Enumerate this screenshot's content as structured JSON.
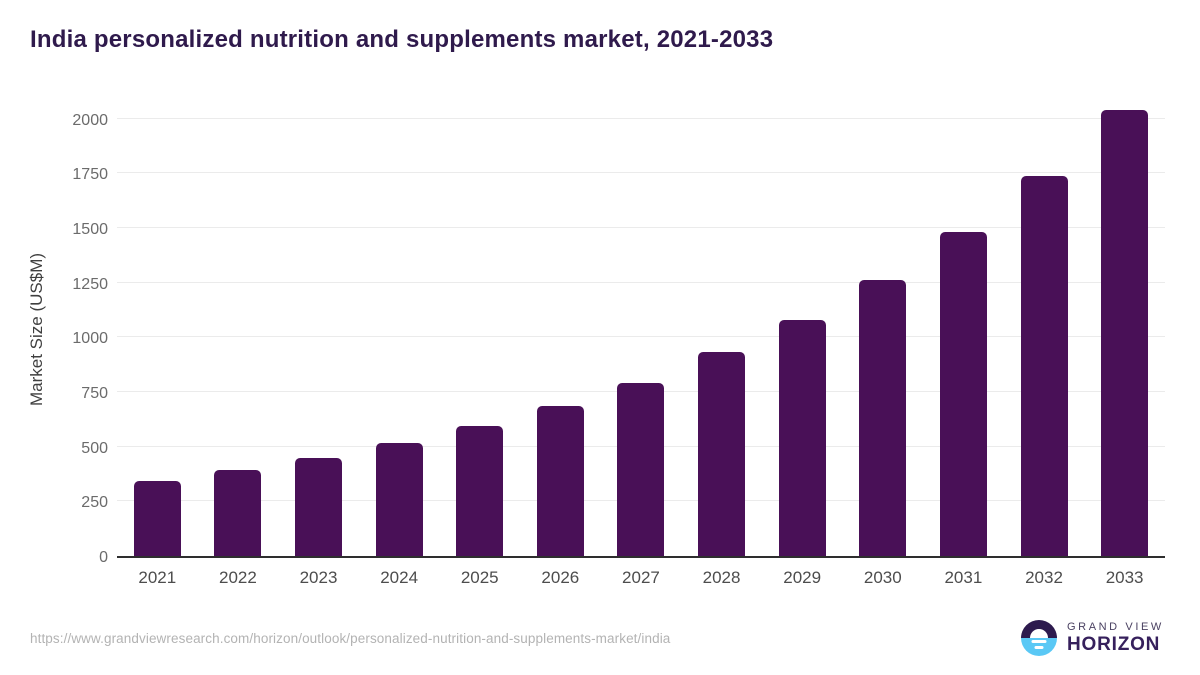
{
  "page": {
    "source_url": "https://www.grandviewresearch.com/horizon/outlook/personalized-nutrition-and-supplements-market/india"
  },
  "logo": {
    "brand_top": "GRAND VIEW",
    "brand_bottom": "HORIZON"
  },
  "colors": {
    "bar": "#491057",
    "title_text": "#2f1a4c",
    "axis_label_text": "#4d4d4d",
    "ytick_text": "#6b6b6b",
    "gridline": "#ebebeb",
    "axis_line": "#2e2e2e",
    "url_text": "#b3b3b3",
    "logo_navy": "#2d1a4e",
    "logo_blue": "#5ac8f5"
  },
  "chart_data": {
    "type": "bar",
    "title": "India personalized nutrition and supplements market, 2021-2033",
    "categories": [
      "2021",
      "2022",
      "2023",
      "2024",
      "2025",
      "2026",
      "2027",
      "2028",
      "2029",
      "2030",
      "2031",
      "2032",
      "2033"
    ],
    "values": [
      345,
      395,
      450,
      515,
      595,
      685,
      790,
      935,
      1080,
      1265,
      1480,
      1740,
      2040
    ],
    "xlabel": "",
    "ylabel": "Market Size (US$M)",
    "ylim": [
      0,
      2095
    ],
    "yticks": [
      0,
      250,
      500,
      750,
      1000,
      1250,
      1500,
      1750,
      2000
    ],
    "grid": "horizontal",
    "legend": "none"
  }
}
